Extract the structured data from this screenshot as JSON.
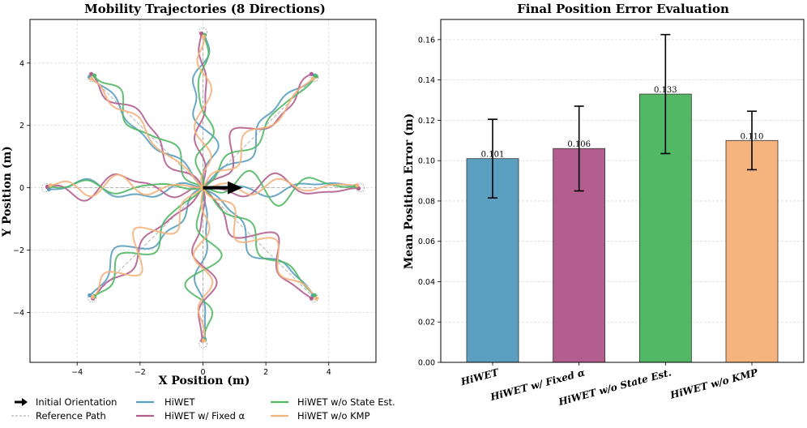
{
  "colors": {
    "hiwet": "#5a9fbf",
    "fixed_alpha": "#b25f8f",
    "wo_state": "#52b865",
    "wo_kmp": "#f5b37d",
    "reference": "#a0a0a0",
    "orientation": "#000000"
  },
  "chart_data": [
    {
      "type": "line",
      "title": "Mobility Trajectories (8 Directions)",
      "xlabel": "X Position (m)",
      "ylabel": "Y Position (m)",
      "xlim": [
        -5.5,
        5.5
      ],
      "ylim": [
        -5.6,
        5.4
      ],
      "xticks": [
        -4,
        -2,
        0,
        2,
        4
      ],
      "yticks": [
        -4,
        -2,
        0,
        2,
        4
      ],
      "grid": true,
      "directions_deg": [
        0,
        45,
        90,
        135,
        180,
        225,
        270,
        315
      ],
      "target_radius": 5.0,
      "endpoints": {
        "HiWET": [
          [
            4.9,
            0.05
          ],
          [
            3.55,
            3.6
          ],
          [
            0.05,
            4.9
          ],
          [
            -3.6,
            3.55
          ],
          [
            -4.9,
            -0.05
          ],
          [
            -3.6,
            -3.45
          ],
          [
            0.05,
            -4.85
          ],
          [
            3.5,
            -3.45
          ]
        ],
        "HiWET w/ Fixed α": [
          [
            4.95,
            -0.02
          ],
          [
            3.45,
            3.65
          ],
          [
            -0.05,
            4.95
          ],
          [
            -3.55,
            3.65
          ],
          [
            -4.95,
            0.03
          ],
          [
            -3.5,
            -3.55
          ],
          [
            -0.02,
            -4.9
          ],
          [
            3.45,
            -3.55
          ]
        ],
        "HiWET w/o State Est.": [
          [
            4.85,
            0.05
          ],
          [
            3.6,
            3.58
          ],
          [
            0.05,
            4.9
          ],
          [
            -3.45,
            3.6
          ],
          [
            -4.85,
            0.05
          ],
          [
            -3.45,
            -3.48
          ],
          [
            0.05,
            -4.88
          ],
          [
            3.55,
            -3.45
          ]
        ],
        "HiWET w/o KMP": [
          [
            4.9,
            0.08
          ],
          [
            3.5,
            3.5
          ],
          [
            0.02,
            4.85
          ],
          [
            -3.55,
            3.5
          ],
          [
            -4.85,
            0.08
          ],
          [
            -3.5,
            -3.5
          ],
          [
            0.02,
            -4.9
          ],
          [
            3.6,
            -3.55
          ]
        ]
      },
      "orientation_arrow": {
        "from": [
          0,
          0
        ],
        "to": [
          1.2,
          0
        ]
      },
      "legend": {
        "placement": "bottom",
        "entries": [
          "Initial Orientation",
          "HiWET",
          "HiWET w/o State Est.",
          "Reference Path",
          "HiWET w/ Fixed α",
          "HiWET w/o KMP"
        ]
      }
    },
    {
      "type": "bar",
      "title": "Final Position Error Evaluation",
      "xlabel": "",
      "ylabel": "Mean Position Error (m)",
      "ylim": [
        0,
        0.17
      ],
      "yticks": [
        0.0,
        0.02,
        0.04,
        0.06,
        0.08,
        0.1,
        0.12,
        0.14,
        0.16
      ],
      "grid": true,
      "categories": [
        "HiWET",
        "HiWET w/ Fixed α",
        "HiWET w/o State Est.",
        "HiWET w/o KMP"
      ],
      "values": [
        0.101,
        0.106,
        0.133,
        0.11
      ],
      "errors": [
        0.0195,
        0.021,
        0.0295,
        0.0145
      ],
      "labels": [
        "0.101",
        "0.106",
        "0.133",
        "0.110"
      ]
    }
  ]
}
